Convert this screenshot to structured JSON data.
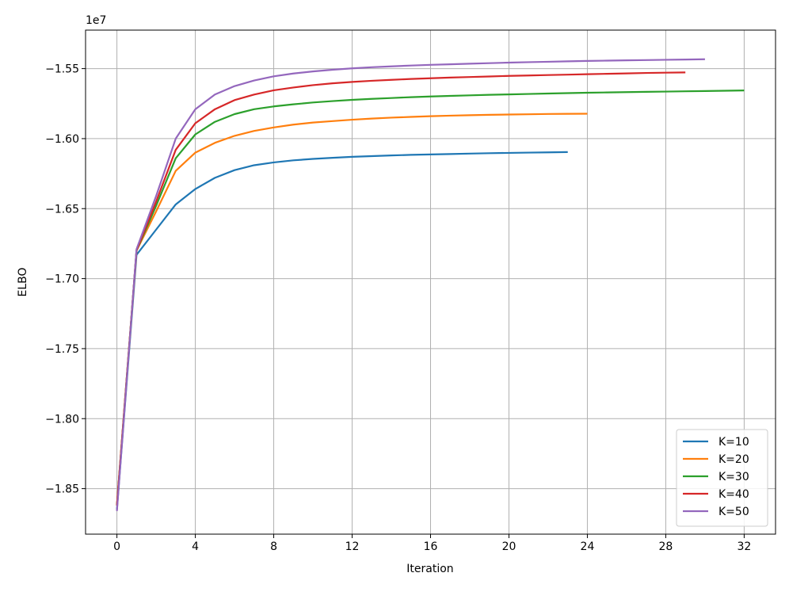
{
  "chart_data": {
    "type": "line",
    "title": "",
    "xlabel": "Iteration",
    "ylabel": "ELBO",
    "y_offset_label": "1e7",
    "xlim": [
      -1.6,
      33.6
    ],
    "ylim": [
      -1.8825,
      -1.5225
    ],
    "xticks": [
      0,
      4,
      8,
      12,
      16,
      20,
      24,
      28,
      32
    ],
    "yticks": [
      -1.85,
      -1.8,
      -1.75,
      -1.7,
      -1.65,
      -1.6,
      -1.55
    ],
    "grid": true,
    "legend_position": "bottom-right",
    "series": [
      {
        "name": "K=10",
        "color": "#1f77b4",
        "x": [
          0,
          1,
          2,
          3,
          4,
          5,
          6,
          7,
          8,
          9,
          10,
          11,
          12,
          13,
          14,
          15,
          16,
          17,
          18,
          19,
          20,
          21,
          22,
          23
        ],
        "y": [
          -1.865,
          -1.683,
          -1.665,
          -1.647,
          -1.636,
          -1.628,
          -1.6225,
          -1.619,
          -1.617,
          -1.6155,
          -1.6145,
          -1.6137,
          -1.613,
          -1.6125,
          -1.612,
          -1.6116,
          -1.6113,
          -1.611,
          -1.6107,
          -1.6104,
          -1.6102,
          -1.61,
          -1.6098,
          -1.6096
        ]
      },
      {
        "name": "K=20",
        "color": "#ff7f0e",
        "x": [
          0,
          1,
          2,
          3,
          4,
          5,
          6,
          7,
          8,
          9,
          10,
          11,
          12,
          13,
          14,
          15,
          16,
          17,
          18,
          19,
          20,
          21,
          22,
          23,
          24
        ],
        "y": [
          -1.862,
          -1.68,
          -1.652,
          -1.623,
          -1.61,
          -1.603,
          -1.598,
          -1.5945,
          -1.592,
          -1.59,
          -1.5885,
          -1.5875,
          -1.5865,
          -1.5857,
          -1.585,
          -1.5845,
          -1.584,
          -1.5836,
          -1.5833,
          -1.583,
          -1.5828,
          -1.5826,
          -1.5824,
          -1.5823,
          -1.5822
        ]
      },
      {
        "name": "K=30",
        "color": "#2ca02c",
        "x": [
          0,
          1,
          2,
          3,
          4,
          5,
          6,
          7,
          8,
          9,
          10,
          11,
          12,
          13,
          14,
          15,
          16,
          17,
          18,
          19,
          20,
          21,
          22,
          23,
          24,
          25,
          26,
          27,
          28,
          29,
          30,
          31,
          32
        ],
        "y": [
          -1.862,
          -1.68,
          -1.648,
          -1.614,
          -1.597,
          -1.588,
          -1.5825,
          -1.579,
          -1.577,
          -1.5755,
          -1.5742,
          -1.5732,
          -1.5723,
          -1.5716,
          -1.571,
          -1.5704,
          -1.5699,
          -1.5695,
          -1.5691,
          -1.5687,
          -1.5684,
          -1.5681,
          -1.5678,
          -1.5675,
          -1.5672,
          -1.567,
          -1.5668,
          -1.5666,
          -1.5664,
          -1.5662,
          -1.566,
          -1.5658,
          -1.5656
        ]
      },
      {
        "name": "K=40",
        "color": "#d62728",
        "x": [
          0,
          1,
          2,
          3,
          4,
          5,
          6,
          7,
          8,
          9,
          10,
          11,
          12,
          13,
          14,
          15,
          16,
          17,
          18,
          19,
          20,
          21,
          22,
          23,
          24,
          25,
          26,
          27,
          28,
          29
        ],
        "y": [
          -1.862,
          -1.68,
          -1.645,
          -1.608,
          -1.589,
          -1.579,
          -1.5725,
          -1.5685,
          -1.5655,
          -1.5635,
          -1.5618,
          -1.5605,
          -1.5595,
          -1.5587,
          -1.558,
          -1.5574,
          -1.5569,
          -1.5564,
          -1.556,
          -1.5556,
          -1.5552,
          -1.5549,
          -1.5546,
          -1.5543,
          -1.554,
          -1.5537,
          -1.5534,
          -1.5531,
          -1.5529,
          -1.5527
        ]
      },
      {
        "name": "K=50",
        "color": "#9467bd",
        "x": [
          0,
          1,
          2,
          3,
          4,
          5,
          6,
          7,
          8,
          9,
          10,
          11,
          12,
          13,
          14,
          15,
          16,
          17,
          18,
          19,
          20,
          21,
          22,
          23,
          24,
          25,
          26,
          27,
          28,
          29,
          30
        ],
        "y": [
          -1.866,
          -1.679,
          -1.641,
          -1.6,
          -1.579,
          -1.5685,
          -1.5625,
          -1.5585,
          -1.5555,
          -1.5535,
          -1.552,
          -1.5508,
          -1.5498,
          -1.549,
          -1.5484,
          -1.5478,
          -1.5473,
          -1.5469,
          -1.5465,
          -1.5461,
          -1.5457,
          -1.5454,
          -1.5451,
          -1.5448,
          -1.5445,
          -1.5443,
          -1.5441,
          -1.5439,
          -1.5437,
          -1.5435,
          -1.5433
        ]
      }
    ]
  }
}
